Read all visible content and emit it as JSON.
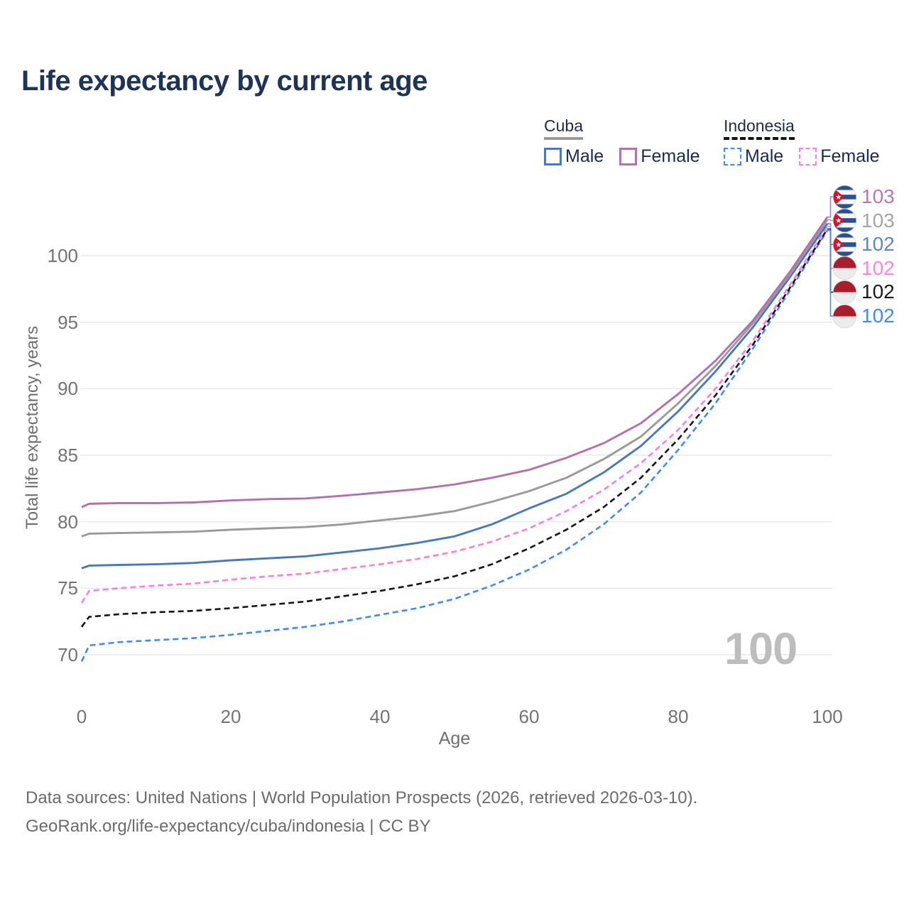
{
  "title": "Life expectancy by current age",
  "legend": {
    "groups": [
      {
        "label": "Cuba",
        "line_style": "solid",
        "underline_color": "#999999",
        "items": [
          {
            "label": "Male",
            "color": "#4a79b8",
            "dashed": false
          },
          {
            "label": "Female",
            "color": "#b271ad",
            "dashed": false
          }
        ]
      },
      {
        "label": "Indonesia",
        "line_style": "dashed",
        "underline_color": "#141414",
        "items": [
          {
            "label": "Male",
            "color": "#4289f5",
            "dashed": true
          },
          {
            "label": "Female",
            "color": "#fc7ce0",
            "dashed": true
          }
        ]
      }
    ]
  },
  "watermark": "100",
  "footer": {
    "line1": "Data sources: United Nations | World Population Prospects (2026, retrieved 2026-03-10).",
    "line2": "GeoRank.org/life-expectancy/cuba/indonesia | CC BY"
  },
  "chart_data": {
    "type": "line",
    "title": "Life expectancy by current age",
    "xlabel": "Age",
    "ylabel": "Total life expectancy, years",
    "xlim": [
      0,
      100
    ],
    "ylim": [
      69,
      103.5
    ],
    "xticks": [
      0,
      20,
      40,
      60,
      80,
      100
    ],
    "yticks": [
      70,
      75,
      80,
      85,
      90,
      95,
      100
    ],
    "grid": "horizontal",
    "legend_position": "top-right",
    "x": [
      0,
      1,
      5,
      10,
      15,
      20,
      25,
      30,
      35,
      40,
      45,
      50,
      55,
      60,
      65,
      70,
      75,
      80,
      85,
      90,
      95,
      100
    ],
    "series": [
      {
        "name": "Cuba Female",
        "country": "Cuba",
        "sex": "Female",
        "flag": "cuba",
        "dash": "solid",
        "color": "#b271ad",
        "end_label": "103",
        "end_label_color": "#b679b6",
        "values": [
          81.1,
          81.35,
          81.4,
          81.4,
          81.45,
          81.6,
          81.7,
          81.75,
          81.95,
          82.2,
          82.45,
          82.8,
          83.3,
          83.9,
          84.8,
          85.9,
          87.4,
          89.6,
          92.1,
          95.1,
          98.8,
          102.9
        ]
      },
      {
        "name": "Cuba Both sexes",
        "country": "Cuba",
        "sex": "Both",
        "flag": "cuba",
        "dash": "solid",
        "color": "#9a9a9a",
        "end_label": "103",
        "end_label_color": "#a6a6a6",
        "values": [
          78.9,
          79.1,
          79.15,
          79.2,
          79.25,
          79.4,
          79.5,
          79.6,
          79.8,
          80.1,
          80.4,
          80.8,
          81.5,
          82.3,
          83.3,
          84.7,
          86.4,
          88.9,
          91.7,
          94.9,
          98.6,
          102.7
        ]
      },
      {
        "name": "Cuba Male",
        "country": "Cuba",
        "sex": "Male",
        "flag": "cuba",
        "dash": "solid",
        "color": "#4a79b8",
        "end_label": "102",
        "end_label_color": "#5f87c8",
        "values": [
          76.5,
          76.7,
          76.75,
          76.8,
          76.9,
          77.1,
          77.25,
          77.4,
          77.7,
          78.0,
          78.4,
          78.9,
          79.8,
          81.0,
          82.1,
          83.7,
          85.7,
          88.3,
          91.3,
          94.6,
          98.4,
          102.4
        ]
      },
      {
        "name": "Indonesia Female",
        "country": "Indonesia",
        "sex": "Female",
        "flag": "indonesia",
        "dash": "dashed",
        "color": "#fc7ce0",
        "end_label": "102",
        "end_label_color": "#fc84ea",
        "values": [
          73.9,
          74.8,
          75.0,
          75.2,
          75.35,
          75.65,
          75.9,
          76.1,
          76.45,
          76.8,
          77.2,
          77.75,
          78.5,
          79.5,
          80.8,
          82.4,
          84.4,
          86.9,
          90.0,
          93.6,
          97.8,
          102.2
        ]
      },
      {
        "name": "Indonesia Both sexes",
        "country": "Indonesia",
        "sex": "Both",
        "flag": "indonesia",
        "dash": "dashed",
        "color": "#141414",
        "end_label": "102",
        "end_label_color": "#1c1c1c",
        "values": [
          72.1,
          72.85,
          73.05,
          73.2,
          73.3,
          73.5,
          73.75,
          74.0,
          74.4,
          74.8,
          75.3,
          75.9,
          76.8,
          78.0,
          79.4,
          81.1,
          83.3,
          86.2,
          89.5,
          93.3,
          97.6,
          102.0
        ]
      },
      {
        "name": "Indonesia Male",
        "country": "Indonesia",
        "sex": "Male",
        "flag": "indonesia",
        "dash": "dashed",
        "color": "#4289f5",
        "end_label": "102",
        "end_label_color": "#4289f5",
        "values": [
          69.5,
          70.7,
          70.95,
          71.1,
          71.25,
          71.5,
          71.8,
          72.1,
          72.5,
          73.0,
          73.5,
          74.2,
          75.2,
          76.4,
          77.9,
          79.8,
          82.2,
          85.4,
          88.9,
          93.0,
          97.4,
          101.9
        ]
      }
    ]
  }
}
